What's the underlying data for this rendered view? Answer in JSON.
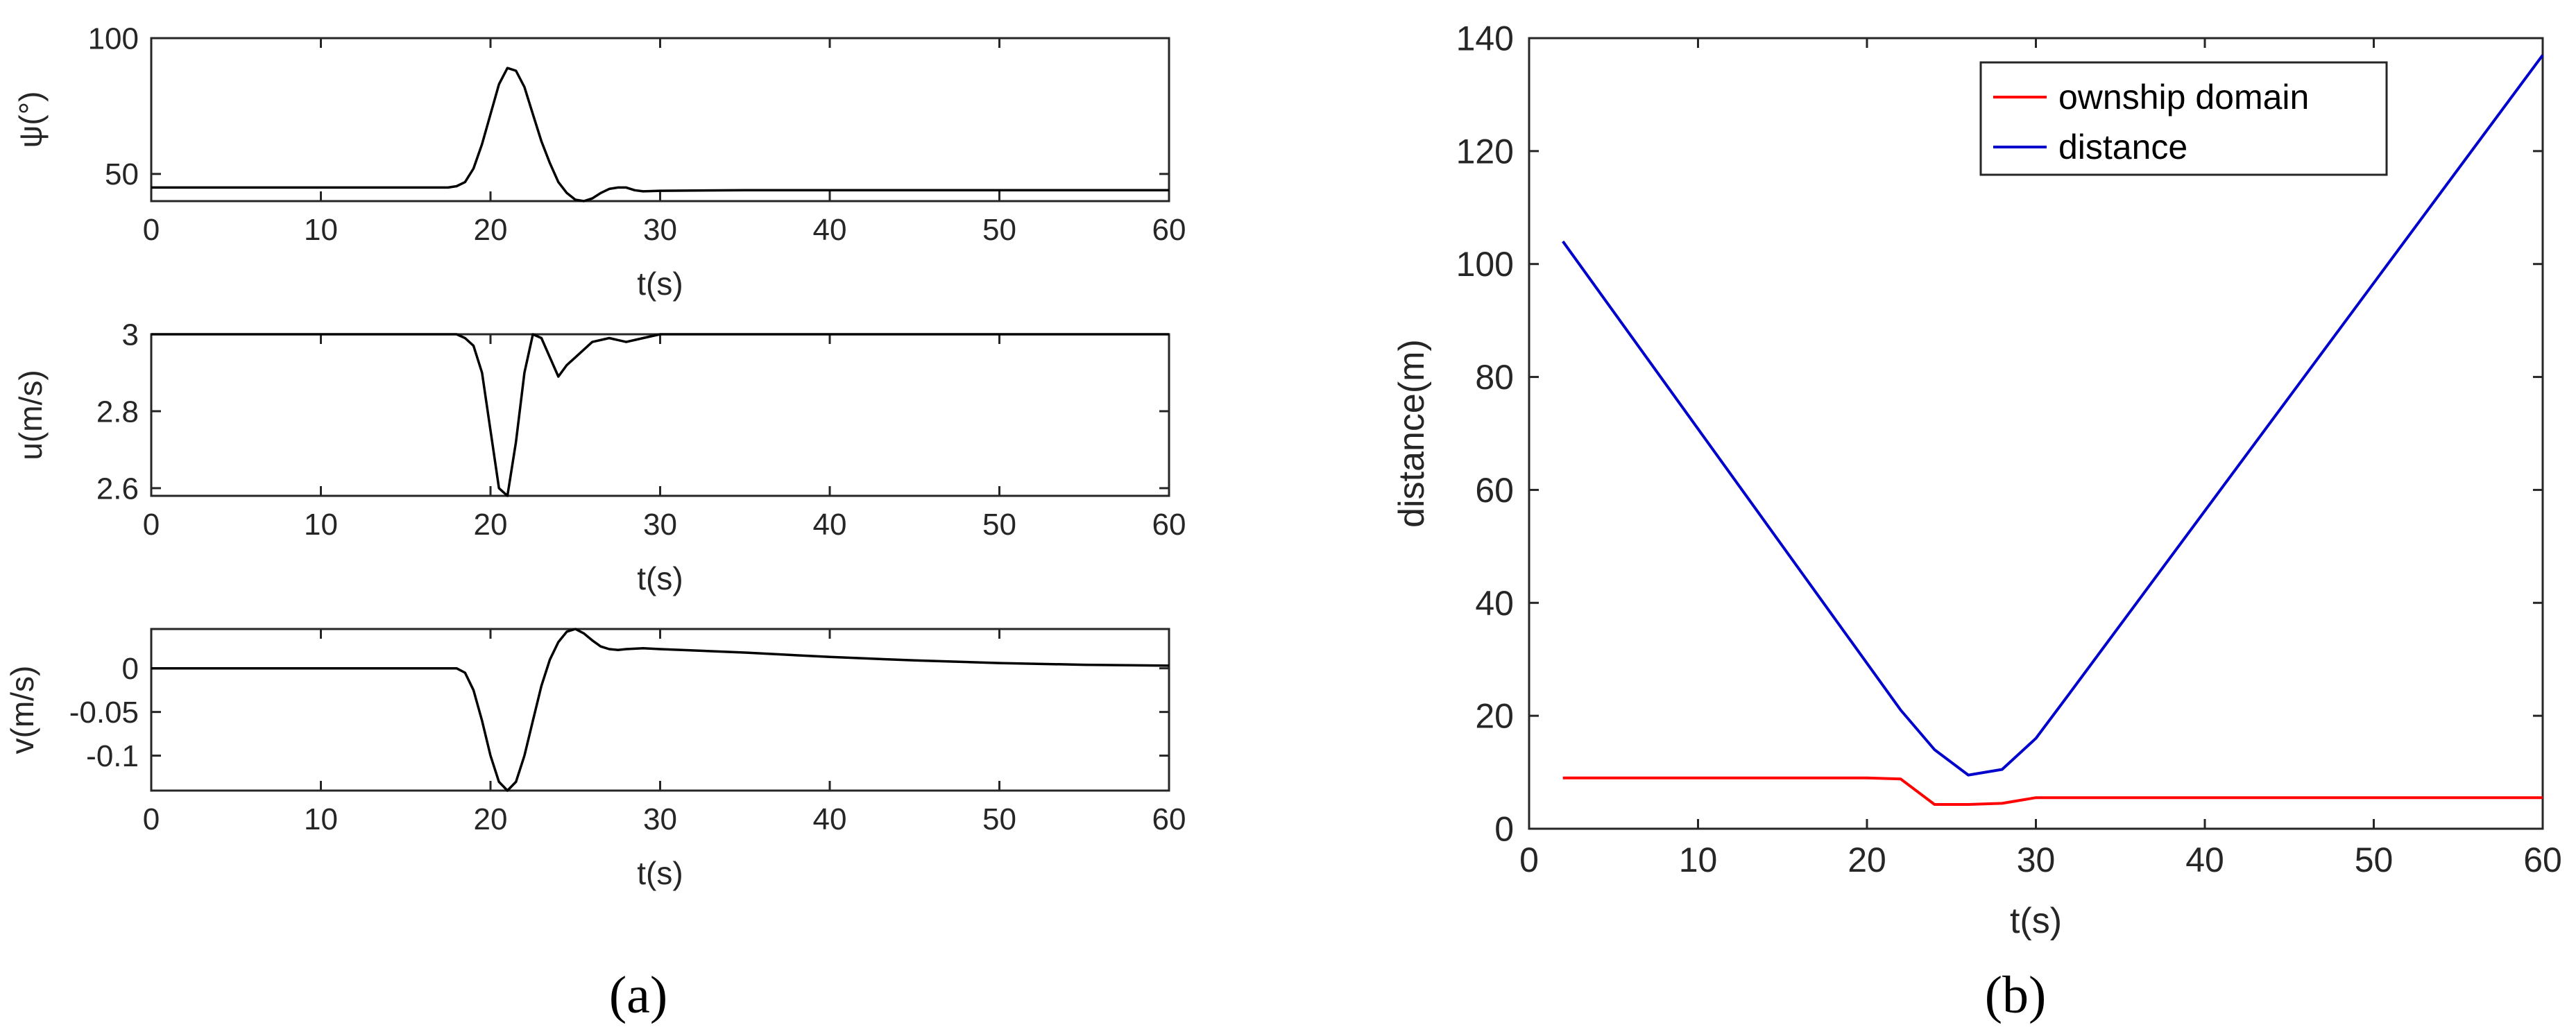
{
  "chart_data": [
    {
      "type": "line",
      "panel": "a-1",
      "xlabel": "t(s)",
      "ylabel": "ψ(°)",
      "xlim": [
        0,
        60
      ],
      "ylim": [
        40,
        100
      ],
      "xticks": [
        0,
        10,
        20,
        30,
        40,
        50,
        60
      ],
      "yticks": [
        50,
        100
      ],
      "grid": false,
      "color": "#000000",
      "series": [
        {
          "x": [
            0,
            17.5,
            18,
            18.5,
            19,
            19.5,
            20,
            20.5,
            21,
            21.5,
            22,
            22.5,
            23,
            23.5,
            24,
            24.5,
            25,
            25.5,
            26,
            26.5,
            27,
            27.5,
            28,
            28.5,
            29,
            30,
            35,
            40,
            50,
            60
          ],
          "y": [
            45,
            45,
            45.5,
            47,
            52,
            61,
            72,
            83,
            89,
            88,
            82,
            72,
            62,
            54,
            47,
            43,
            40.5,
            40,
            41,
            43,
            44.5,
            45,
            45,
            44,
            43.6,
            43.8,
            44,
            44,
            44,
            44
          ]
        }
      ]
    },
    {
      "type": "line",
      "panel": "a-2",
      "xlabel": "t(s)",
      "ylabel": "u(m/s)",
      "xlim": [
        0,
        60
      ],
      "ylim": [
        2.58,
        3.0
      ],
      "xticks": [
        0,
        10,
        20,
        30,
        40,
        50,
        60
      ],
      "yticks": [
        2.6,
        2.8,
        3
      ],
      "grid": false,
      "color": "#000000",
      "series": [
        {
          "x": [
            0,
            18,
            18.5,
            19,
            19.5,
            20,
            20.5,
            21,
            21.5,
            22,
            22.5,
            23,
            23.5,
            24,
            24.5,
            25,
            25.5,
            26,
            27,
            28,
            29,
            30,
            60
          ],
          "y": [
            3.0,
            3.0,
            2.99,
            2.97,
            2.9,
            2.75,
            2.6,
            2.58,
            2.72,
            2.9,
            3.0,
            2.99,
            2.94,
            2.89,
            2.92,
            2.94,
            2.96,
            2.98,
            2.99,
            2.98,
            2.99,
            3.0,
            3.0
          ]
        }
      ]
    },
    {
      "type": "line",
      "panel": "a-3",
      "xlabel": "t(s)",
      "ylabel": "v(m/s)",
      "xlim": [
        0,
        60
      ],
      "ylim": [
        -0.14,
        0.045
      ],
      "xticks": [
        0,
        10,
        20,
        30,
        40,
        50,
        60
      ],
      "yticks": [
        0,
        -0.05,
        -0.1
      ],
      "ytick_labels": [
        "0",
        "-0.05",
        "-0.1"
      ],
      "grid": false,
      "color": "#000000",
      "series": [
        {
          "x": [
            0,
            18,
            18.5,
            19,
            19.5,
            20,
            20.5,
            21,
            21.5,
            22,
            22.5,
            23,
            23.5,
            24,
            24.5,
            25,
            25.5,
            26,
            26.5,
            27,
            27.5,
            28,
            29,
            30,
            35,
            40,
            45,
            50,
            55,
            60
          ],
          "y": [
            0,
            0,
            -0.005,
            -0.025,
            -0.06,
            -0.1,
            -0.13,
            -0.14,
            -0.13,
            -0.1,
            -0.06,
            -0.02,
            0.01,
            0.03,
            0.042,
            0.045,
            0.04,
            0.032,
            0.025,
            0.022,
            0.021,
            0.022,
            0.023,
            0.022,
            0.018,
            0.013,
            0.009,
            0.006,
            0.004,
            0.003
          ]
        }
      ]
    },
    {
      "type": "line",
      "panel": "b",
      "xlabel": "t(s)",
      "ylabel": "distance(m)",
      "xlim": [
        0,
        60
      ],
      "ylim": [
        0,
        140
      ],
      "xticks": [
        0,
        10,
        20,
        30,
        40,
        50,
        60
      ],
      "yticks": [
        0,
        20,
        40,
        60,
        80,
        100,
        120,
        140
      ],
      "grid": false,
      "legend_position": "top-right",
      "series": [
        {
          "name": "ownship domain",
          "color": "#ff0000",
          "x": [
            2,
            20,
            22,
            24,
            26,
            28,
            30,
            60
          ],
          "y": [
            9,
            9,
            8.8,
            4.3,
            4.3,
            4.5,
            5.5,
            5.5
          ]
        },
        {
          "name": "distance",
          "color": "#0000cc",
          "x": [
            2,
            22,
            24,
            26,
            28,
            30,
            32,
            60
          ],
          "y": [
            104,
            21,
            14,
            9.5,
            10.5,
            16,
            24,
            137
          ]
        }
      ]
    }
  ],
  "panel_labels": {
    "a": "(a)",
    "b": "(b)"
  }
}
